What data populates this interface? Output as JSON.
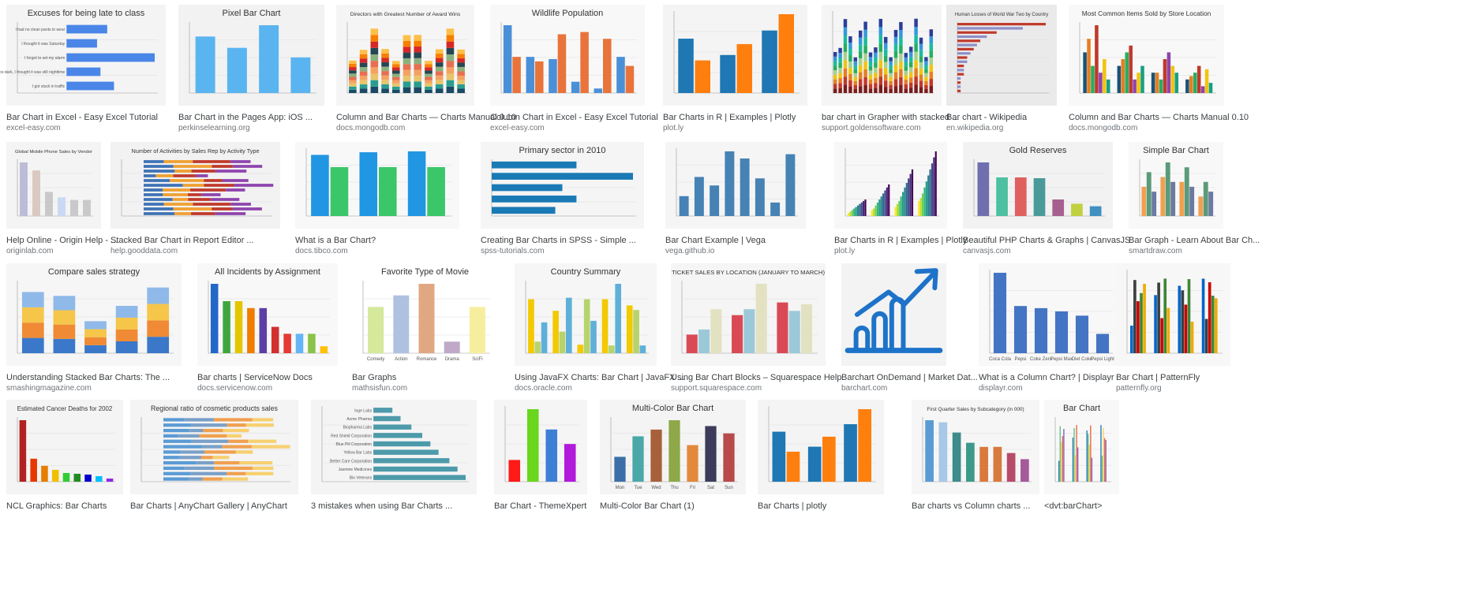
{
  "results": [
    {
      "title": "Bar Chart in Excel - Easy Excel Tutorial",
      "source": "excel-easy.com",
      "thumb": {
        "bg": "#f4f4f4",
        "type": "hbar",
        "title": "Excuses for being late to class",
        "colors": [
          "#4a86e8"
        ],
        "values": [
          12,
          9,
          26,
          10,
          14
        ],
        "labels": [
          "I had no clean pants to wear",
          "I thought it was Saturday",
          "I forgot to set my alarm",
          "It was still too dark, I thought it was still nighttime",
          "I got stuck in traffic"
        ]
      }
    },
    {
      "title": "Bar Chart in the Pages App: iOS ...",
      "source": "perkinselearning.org",
      "thumb": {
        "bg": "#f2f2f2",
        "type": "vbar",
        "title": "Pixel Bar Chart",
        "colors": [
          "#5ab4f0"
        ],
        "values": [
          6.5,
          5.2,
          7.8,
          4.1
        ]
      }
    },
    {
      "title": "Column and Bar Charts — Charts Manual 0.10",
      "source": "docs.mongodb.com",
      "thumb": {
        "bg": "#f5f5f5",
        "type": "stacked",
        "title": "Directors with Greatest Number of Award Wins",
        "colors": [
          "#1b4965",
          "#2a9d8f",
          "#e9c46a",
          "#f4a261",
          "#e76f51",
          "#8ab17d",
          "#264653",
          "#d62828",
          "#f77f00",
          "#fcbf49"
        ],
        "n": 11
      }
    },
    {
      "title": "Column Chart in Excel - Easy Excel Tutorial",
      "source": "excel-easy.com",
      "thumb": {
        "bg": "#f8f8f8",
        "type": "grouped",
        "title": "Wildlife Population",
        "colors": [
          "#4a90d9",
          "#e8743b"
        ],
        "series": [
          [
            150,
            80,
            75,
            25,
            10,
            80
          ],
          [
            80,
            70,
            130,
            135,
            120,
            60
          ]
        ]
      }
    },
    {
      "title": "Bar Charts in R | Examples | Plotly",
      "source": "plot.ly",
      "thumb": {
        "bg": "#f4f4f4",
        "type": "grouped",
        "title": "",
        "colors": [
          "#1f77b4",
          "#ff7f0e"
        ],
        "series": [
          [
            20,
            14,
            23
          ],
          [
            12,
            18,
            29
          ]
        ]
      }
    },
    {
      "title": "bar chart in Grapher with stacked ...",
      "source": "support.goldensoftware.com",
      "thumb": {
        "bg": "#f5f5f5",
        "type": "stacked",
        "title": "",
        "colors": [
          "#7a1c1c",
          "#c0392b",
          "#e67e22",
          "#f1c40f",
          "#a8d08d",
          "#27ae60",
          "#1abc9c",
          "#3498db",
          "#2c3e99"
        ],
        "n": 20
      }
    },
    {
      "title": "Bar chart - Wikipedia",
      "source": "en.wikipedia.org",
      "thumb": {
        "bg": "#eaeaea",
        "type": "hbar",
        "title": "Human Losses of World War Two by Country",
        "colors": [
          "#c0392b",
          "#8e8ec9"
        ],
        "values": [
          27,
          20,
          12,
          9,
          7,
          6,
          5,
          4,
          3,
          3,
          2,
          2,
          2,
          1,
          1,
          1,
          1
        ],
        "labels": []
      }
    },
    {
      "title": "Column and Bar Charts — Charts Manual 0.10",
      "source": "docs.mongodb.com",
      "thumb": {
        "bg": "#f8f8f8",
        "type": "grouped",
        "title": "Most Common Items Sold by Store Location",
        "colors": [
          "#1a5276",
          "#e67e22",
          "#27ae60",
          "#c0392b",
          "#8e44ad",
          "#f1c40f",
          "#16a085"
        ],
        "series": [
          [
            60,
            40,
            30,
            20
          ],
          [
            80,
            50,
            30,
            25
          ],
          [
            40,
            60,
            20,
            30
          ],
          [
            100,
            70,
            50,
            40
          ],
          [
            30,
            20,
            60,
            10
          ],
          [
            50,
            30,
            40,
            35
          ],
          [
            20,
            40,
            30,
            15
          ]
        ]
      }
    },
    {
      "title": "Help Online - Origin Help - ...",
      "source": "originlab.com",
      "thumb": {
        "bg": "#f4f4f4",
        "type": "vbar",
        "title": "Global Mobile Phone Sales by Vendor",
        "colors": [
          "#bcbcd8",
          "#d9c9c1",
          "#c9c9c9",
          "#c9d9f3",
          "#c9c9c9",
          "#c9c9c9"
        ],
        "values": [
          100,
          85,
          45,
          35,
          30,
          30
        ]
      }
    },
    {
      "title": "Stacked Bar Chart in Report Editor ...",
      "source": "help.gooddata.com",
      "thumb": {
        "bg": "#f2f2f2",
        "type": "hstacked",
        "title": "Number of Activities by Sales Rep by Activity Type",
        "colors": [
          "#3e72b5",
          "#f0a030",
          "#c0392b",
          "#8e44ad"
        ],
        "n": 12
      }
    },
    {
      "title": "What is a Bar Chart?",
      "source": "docs.tibco.com",
      "thumb": {
        "bg": "#f8f8f8",
        "type": "grouped",
        "title": "",
        "colors": [
          "#2196e3",
          "#3cc66a"
        ],
        "series": [
          [
            700,
            730,
            740
          ],
          [
            560,
            560,
            560
          ]
        ]
      }
    },
    {
      "title": "Creating Bar Charts in SPSS - Simple ...",
      "source": "spss-tutorials.com",
      "thumb": {
        "bg": "#f5f5f5",
        "type": "hbar",
        "title": "Primary sector in 2010",
        "colors": [
          "#1a7ab5"
        ],
        "values": [
          6,
          10,
          5,
          6,
          4.5
        ],
        "labels": []
      }
    },
    {
      "title": "Bar Chart Example | Vega",
      "source": "vega.github.io",
      "thumb": {
        "bg": "#f5f5f5",
        "type": "vbar",
        "title": "",
        "colors": [
          "#4682b4"
        ],
        "values": [
          28,
          55,
          43,
          91,
          81,
          53,
          19,
          87
        ]
      }
    },
    {
      "title": "Bar Charts in R | Examples | Plotly",
      "source": "plot.ly",
      "thumb": {
        "bg": "#f7f7f7",
        "type": "grouped",
        "title": "",
        "colors": [
          "#fde725",
          "#b5de2b",
          "#6ece58",
          "#35b779",
          "#1f9e89",
          "#26828e",
          "#31688e",
          "#3e4989",
          "#482878",
          "#440154"
        ],
        "series": [
          [
            2,
            4,
            6,
            10
          ],
          [
            3,
            5,
            8,
            12
          ],
          [
            4,
            7,
            10,
            15
          ],
          [
            5,
            9,
            13,
            19
          ],
          [
            6,
            11,
            16,
            23
          ],
          [
            7,
            13,
            19,
            27
          ],
          [
            8,
            15,
            22,
            31
          ],
          [
            9,
            17,
            25,
            35
          ],
          [
            10,
            19,
            28,
            39
          ],
          [
            11,
            21,
            31,
            43
          ]
        ]
      }
    },
    {
      "title": "Beautiful PHP Charts & Graphs | CanvasJS",
      "source": "canvasjs.com",
      "thumb": {
        "bg": "#f2f2f2",
        "type": "vbar",
        "title": "Gold Reserves",
        "colors": [
          "#6f6fb0",
          "#4cc0a0",
          "#e06060",
          "#4a9a9a",
          "#a66090",
          "#c0d040",
          "#4090c0"
        ],
        "values": [
          3400,
          2450,
          2450,
          2400,
          1050,
          780,
          620
        ]
      }
    },
    {
      "title": "Bar Graph - Learn About Bar Ch...",
      "source": "smartdraw.com",
      "thumb": {
        "bg": "#f8f8f8",
        "type": "grouped",
        "title": "Simple Bar Chart",
        "colors": [
          "#f0a050",
          "#5a9a7a",
          "#6a7aa0"
        ],
        "series": [
          [
            30,
            40,
            35,
            20
          ],
          [
            45,
            55,
            50,
            35
          ],
          [
            25,
            35,
            30,
            25
          ]
        ]
      }
    },
    {
      "title": "Understanding Stacked Bar Charts: The ...",
      "source": "smashingmagazine.com",
      "thumb": {
        "bg": "#f6f6f6",
        "type": "stacked",
        "title": "Compare sales strategy",
        "colors": [
          "#3b78c9",
          "#f08a34",
          "#f5c64a",
          "#8fb9e8"
        ],
        "n": 5
      }
    },
    {
      "title": "Bar charts | ServiceNow Docs",
      "source": "docs.servicenow.com",
      "thumb": {
        "bg": "#f8f8f8",
        "type": "vbar",
        "title": "All Incidents by Assignment",
        "colors": [
          "#2367c9",
          "#3fa63f",
          "#e3c600",
          "#f07c00",
          "#5b3fa6",
          "#d32f2f",
          "#e53935",
          "#64b5f6",
          "#8bc34a",
          "#ffc107"
        ],
        "values": [
          100,
          75,
          75,
          65,
          65,
          38,
          28,
          28,
          28,
          10
        ]
      }
    },
    {
      "title": "Bar Graphs",
      "source": "mathsisfun.com",
      "thumb": {
        "bg": "#ffffff",
        "type": "vbar",
        "title": "Favorite Type of Movie",
        "colors": [
          "#d4e99a",
          "#aec2e0",
          "#e0a882",
          "#bfa8c8",
          "#f6ee9e"
        ],
        "values": [
          4,
          5,
          6,
          1,
          4
        ],
        "labels": [
          "Comedy",
          "Action",
          "Romance",
          "Drama",
          "SciFi"
        ]
      }
    },
    {
      "title": "Using JavaFX Charts: Bar Chart | JavaFX ...",
      "source": "docs.oracle.com",
      "thumb": {
        "bg": "#f6f6f6",
        "type": "grouped",
        "title": "Country Summary",
        "colors": [
          "#f3c900",
          "#b7d36e",
          "#5fb0d8"
        ],
        "series": [
          [
            700,
            550,
            110,
            700,
            620
          ],
          [
            150,
            280,
            700,
            100,
            560
          ],
          [
            400,
            720,
            420,
            900,
            100
          ]
        ]
      }
    },
    {
      "title": "Using Bar Chart Blocks – Squarespace Help",
      "source": "support.squarespace.com",
      "thumb": {
        "bg": "#f5f5f5",
        "type": "grouped",
        "title": "TICKET SALES BY LOCATION (JANUARY TO MARCH)",
        "colors": [
          "#d94a55",
          "#9cc9d9",
          "#e2e1c2"
        ],
        "series": [
          [
            220,
            450,
            600
          ],
          [
            280,
            520,
            500
          ],
          [
            520,
            820,
            580
          ]
        ]
      }
    },
    {
      "title": "Barchart OnDemand | Market Dat...",
      "source": "barchart.com",
      "thumb": {
        "bg": "#f3f3f3",
        "type": "icon",
        "title": "",
        "colors": [
          "#1e73c9"
        ]
      }
    },
    {
      "title": "What is a Column Chart? | Displayr",
      "source": "displayr.com",
      "thumb": {
        "bg": "#f8f8f8",
        "type": "vbar",
        "title": "",
        "colors": [
          "#4474c4"
        ],
        "values": [
          75,
          44,
          42,
          39,
          35,
          18
        ],
        "labels": [
          "Coca Cola",
          "Pepsi",
          "Coke Zero",
          "Pepsi Max",
          "Diet Coke",
          "Pepsi Light"
        ]
      }
    },
    {
      "title": "Bar Chart | PatternFly",
      "source": "patternfly.org",
      "thumb": {
        "bg": "#f7f7f7",
        "type": "multi",
        "title": "",
        "colors": [
          "#0066cc",
          "#3c3f42",
          "#cc0000",
          "#3e8635",
          "#f0ab00"
        ]
      }
    },
    {
      "title": "NCL Graphics: Bar Charts",
      "source": "",
      "thumb": {
        "bg": "#f4f4f4",
        "type": "vbar",
        "title": "Estimated Cancer Deaths for 2002",
        "colors": [
          "#b22222",
          "#e63900",
          "#e67e00",
          "#f0c000",
          "#32cd32",
          "#228b22",
          "#0000cd",
          "#00bfff",
          "#8a2be2"
        ],
        "values": [
          155,
          58,
          40,
          30,
          22,
          20,
          18,
          14,
          8
        ]
      }
    },
    {
      "title": "Bar Charts | AnyChart Gallery | AnyChart",
      "source": "",
      "thumb": {
        "bg": "#f4f4f4",
        "type": "hstacked",
        "title": "Regional ratio of cosmetic products sales",
        "colors": [
          "#5a9bd5",
          "#7aa0c8",
          "#f0a050",
          "#f7d070"
        ],
        "n": 12
      }
    },
    {
      "title": "3 mistakes when using Bar Charts ...",
      "source": "",
      "thumb": {
        "bg": "#f4f4f4",
        "type": "hbar",
        "title": "",
        "colors": [
          "#4d9aaa"
        ],
        "values": [
          0.14,
          0.2,
          0.28,
          0.36,
          0.42,
          0.48,
          0.56,
          0.62,
          0.68
        ],
        "labels": [
          "Inge Labs",
          "Acme Pharma",
          "Biopharma Labs",
          "Red Shield Corporation",
          "Blue Pill Corporation",
          "Yellow Bar Labs",
          "Better Care Corporation",
          "Jasmine Medicines",
          "Bio Veterans"
        ]
      }
    },
    {
      "title": "Bar Chart - ThemeXpert",
      "source": "",
      "thumb": {
        "bg": "#f5f5f5",
        "type": "vbar",
        "title": "",
        "colors": [
          "#ff1a1a",
          "#6ad61e",
          "#3e7fd6",
          "#b21adb"
        ],
        "values": [
          30,
          100,
          72,
          52
        ]
      }
    },
    {
      "title": "Multi-Color Bar Chart (1)",
      "source": "",
      "thumb": {
        "bg": "#f4f4f4",
        "type": "vbar",
        "title": "Multi-Color Bar Chart",
        "colors": [
          "#3c6fa8",
          "#4aa8a8",
          "#a8603c",
          "#8ea84a",
          "#e3893c",
          "#3c3c5a",
          "#b84a4a"
        ],
        "values": [
          85,
          155,
          178,
          210,
          125,
          190,
          165
        ],
        "labels": [
          "Mon",
          "Tue",
          "Wed",
          "Thu",
          "Fri",
          "Sat",
          "Sun"
        ]
      }
    },
    {
      "title": "Bar Charts | plotly",
      "source": "",
      "thumb": {
        "bg": "#f4f4f4",
        "type": "grouped",
        "title": "",
        "colors": [
          "#1f77b4",
          "#ff7f0e"
        ],
        "series": [
          [
            20,
            14,
            23
          ],
          [
            12,
            18,
            29
          ]
        ]
      }
    },
    {
      "title": "Bar charts vs Column charts ...",
      "source": "",
      "thumb": {
        "bg": "#f6f6f6",
        "type": "vbar",
        "title": "First Quarter Sales by Subcategory (in 000)",
        "colors": [
          "#5b9bd5",
          "#a8c8e8",
          "#3d8b8b",
          "#3d9a8a",
          "#d87a3c",
          "#d87a3c",
          "#b84a6a",
          "#a65a9a"
        ],
        "values": [
          150,
          145,
          120,
          95,
          85,
          85,
          70,
          55
        ]
      }
    },
    {
      "title": "<dvt:barChart>",
      "source": "",
      "thumb": {
        "bg": "#f8f8f8",
        "type": "multi",
        "title": "Bar Chart",
        "colors": [
          "#267db3",
          "#68c182",
          "#fad55c",
          "#ed6647",
          "#8561c8"
        ]
      }
    }
  ]
}
